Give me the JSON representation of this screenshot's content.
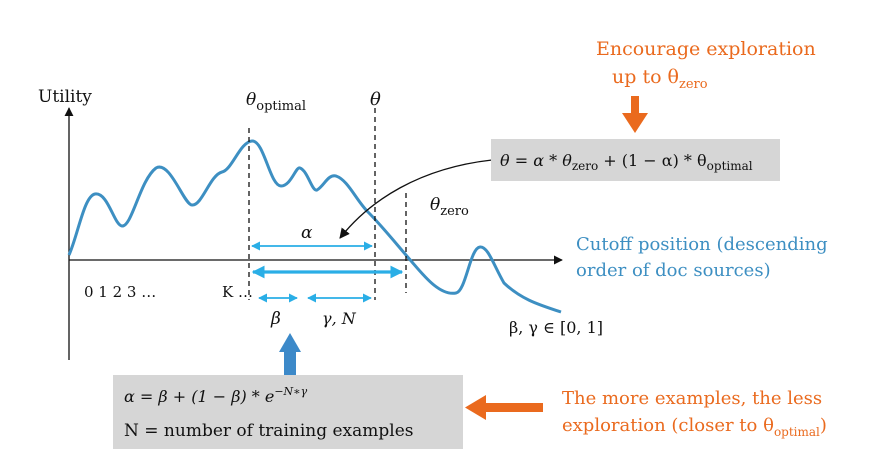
{
  "colors": {
    "curve": "#3d8fc2",
    "arrow_blue": "#2aaee6",
    "orange": "#ea6a1e",
    "box": "#d6d6d6",
    "ink": "#111111",
    "up_arrow": "#3c89c9"
  },
  "labels": {
    "y_axis": "Utility",
    "x_ticks": "0 1 2 3 …",
    "k_label": "K …",
    "alpha": "α",
    "beta": "β",
    "gamma_n": "γ, N",
    "beta_gamma_range": "β, γ ∈ [0, 1]"
  },
  "theta": {
    "optimal_base": "θ",
    "optimal_sub": "optimal",
    "theta": "θ",
    "zero_base": "θ",
    "zero_sub": "zero"
  },
  "formula_theta": {
    "p1": "θ = α * θ",
    "sub1": "zero",
    "p2": " + (1 − α) * θ",
    "sub2": "optimal"
  },
  "formula_alpha": {
    "line1": "α = β + (1 − β) * e",
    "exponent": "−N∗γ",
    "line2": "N = number of training examples"
  },
  "annotations": {
    "encourage_line1": "Encourage exploration",
    "encourage_line2": "up to θ",
    "encourage_sub": "zero",
    "cutoff_line1": "Cutoff position (descending",
    "cutoff_line2": "order of doc sources)",
    "more_line1": "The more examples, the less",
    "more_line2": "exploration (closer to θ",
    "more_sub": "optimal",
    "more_close": ")"
  }
}
